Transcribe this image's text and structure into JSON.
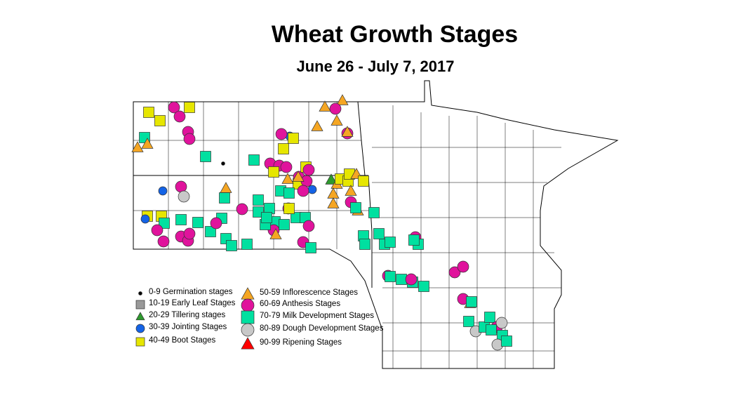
{
  "title": "Wheat Growth Stages",
  "subtitle": "June 26 - July 7, 2017",
  "legend": [
    {
      "label": "0-9 Germination stages",
      "shape": "dot",
      "color": "#000000"
    },
    {
      "label": "10-19 Early Leaf Stages",
      "shape": "square",
      "color": "#999999"
    },
    {
      "label": "20-29 Tillering stages",
      "shape": "triangle",
      "color": "#2e9a2e"
    },
    {
      "label": "30-39 Jointing Stages",
      "shape": "circle",
      "color": "#1463e6"
    },
    {
      "label": "40-49 Boot Stages",
      "shape": "square",
      "color": "#e6e600"
    },
    {
      "label": "50-59 Inflorescence Stages",
      "shape": "triangle",
      "color": "#f5a623"
    },
    {
      "label": "60-69 Anthesis Stages",
      "shape": "circle",
      "color": "#e0139c"
    },
    {
      "label": "70-79 Milk Development Stages",
      "shape": "square",
      "color": "#00e0a0"
    },
    {
      "label": "80-89 Dough Development Stages",
      "shape": "circle",
      "color": "#c8c8c8"
    },
    {
      "label": "90-99 Ripening Stages",
      "shape": "triangle",
      "color": "#ff0000"
    }
  ]
}
